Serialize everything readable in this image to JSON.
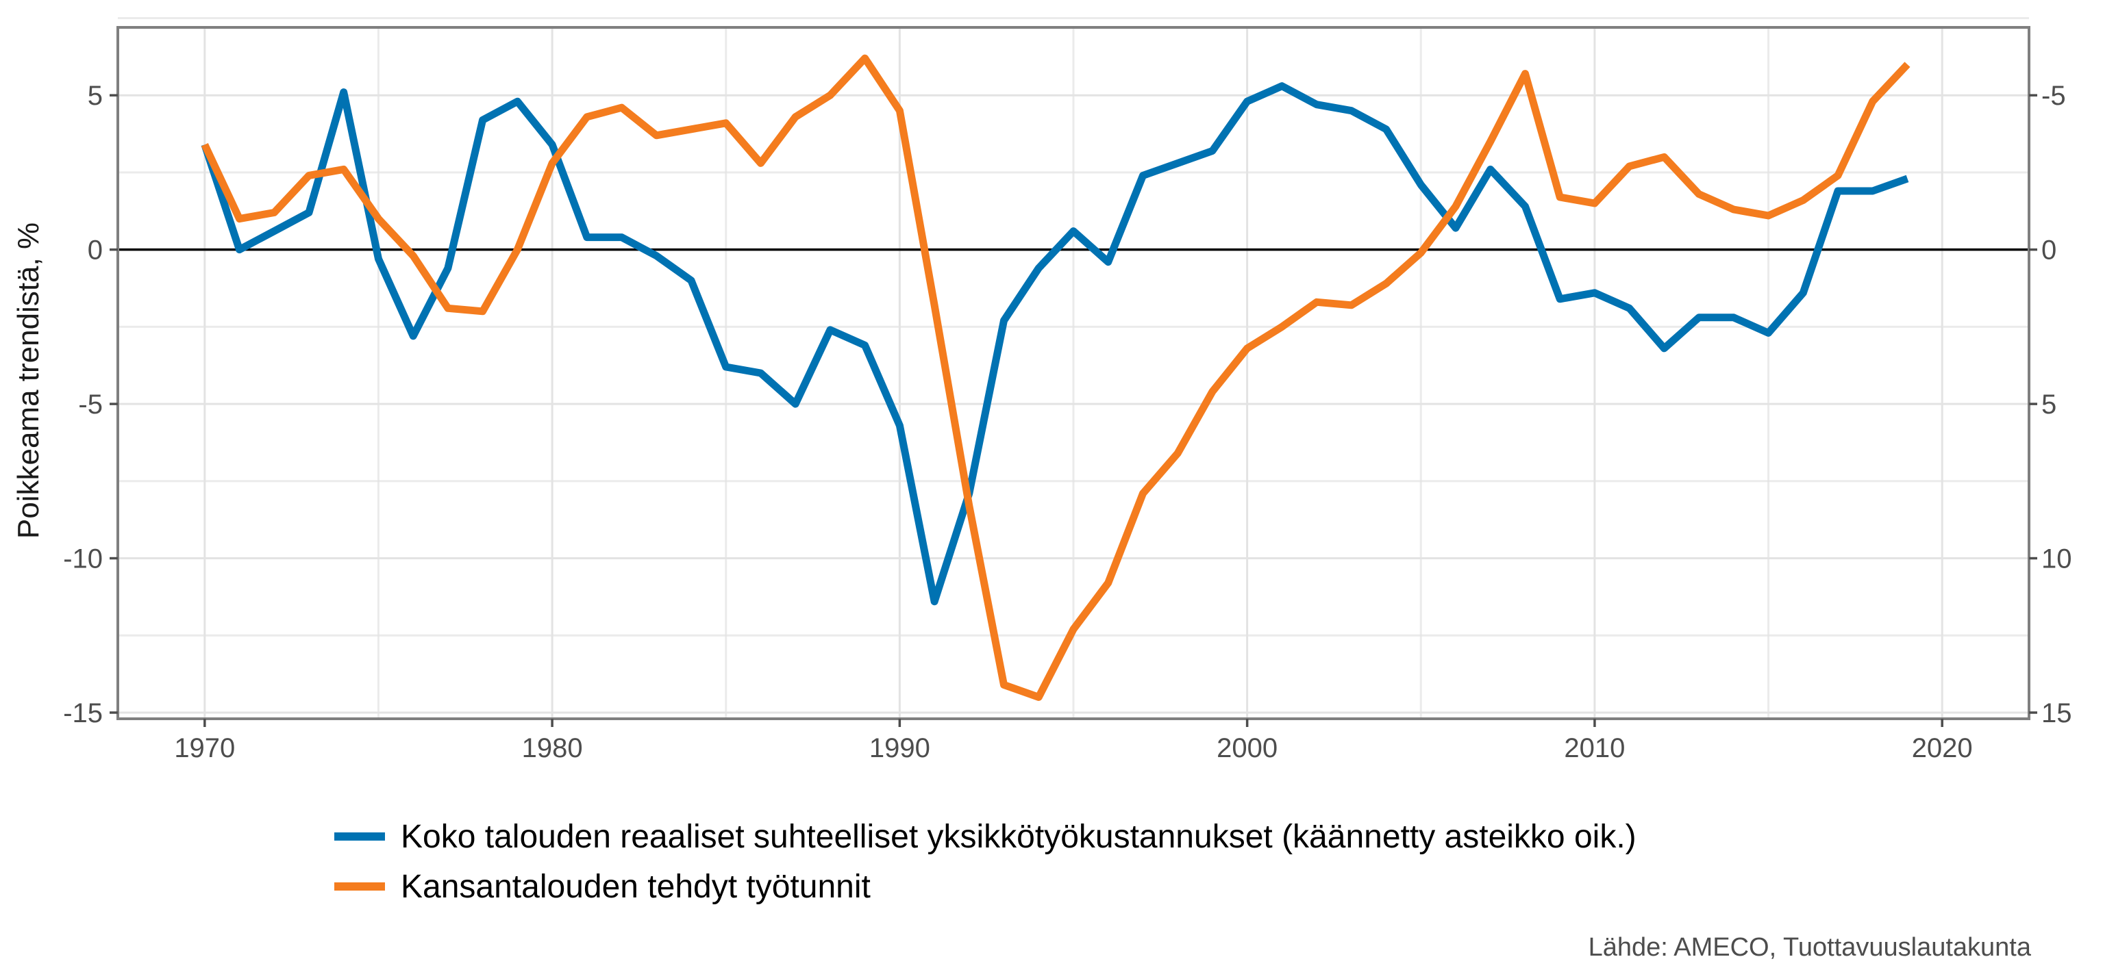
{
  "chart_data": {
    "type": "line",
    "title": "",
    "xlabel": "",
    "ylabel": "Poikkeama trendistä, %",
    "y2label": "",
    "xlim": [
      1967.5,
      2022.5
    ],
    "ylim": [
      -15.2,
      7.2
    ],
    "y2_inverted": true,
    "x_ticks": [
      1970,
      1980,
      1990,
      2000,
      2010,
      2020
    ],
    "y_ticks": [
      5,
      0,
      -5,
      -10,
      -15
    ],
    "y_tick_labels": [
      "5",
      "0",
      "-5",
      "-10",
      "-15"
    ],
    "y2_ticks": [
      -5,
      0,
      5,
      10,
      15
    ],
    "y2_tick_labels": [
      "-5",
      "0",
      "5",
      "10",
      "15"
    ],
    "grid": true,
    "zero_line": 0,
    "legend_position": "bottom",
    "series": [
      {
        "name": "Koko talouden reaaliset suhteelliset yksikkötyökustannukset (käännetty asteikko oik.)",
        "color": "#0072b2",
        "axis": "right-inverted",
        "x": [
          1970,
          1971,
          1972,
          1973,
          1974,
          1975,
          1976,
          1977,
          1978,
          1979,
          1980,
          1981,
          1982,
          1983,
          1984,
          1985,
          1986,
          1987,
          1988,
          1989,
          1990,
          1991,
          1992,
          1993,
          1994,
          1995,
          1996,
          1997,
          1998,
          1999,
          2000,
          2001,
          2002,
          2003,
          2004,
          2005,
          2006,
          2007,
          2008,
          2009,
          2010,
          2011,
          2012,
          2013,
          2014,
          2015,
          2016,
          2017,
          2018,
          2019
        ],
        "values": [
          -3.4,
          0.0,
          -0.6,
          -1.2,
          -5.1,
          0.3,
          2.8,
          0.6,
          -4.2,
          -4.8,
          -3.4,
          -0.4,
          -0.4,
          0.2,
          1.0,
          3.8,
          4.0,
          5.0,
          2.6,
          3.1,
          5.7,
          11.4,
          7.9,
          2.3,
          0.6,
          -0.6,
          0.4,
          -2.4,
          -2.8,
          -3.2,
          -4.8,
          -5.3,
          -4.7,
          -4.5,
          -3.9,
          -2.1,
          -0.7,
          -2.6,
          -1.4,
          1.6,
          1.4,
          1.9,
          3.2,
          2.2,
          2.2,
          2.7,
          1.4,
          -1.9,
          -1.9,
          -2.3
        ]
      },
      {
        "name": "Kansantalouden tehdyt työtunnit",
        "color": "#f47c1e",
        "axis": "left",
        "x": [
          1970,
          1971,
          1972,
          1973,
          1974,
          1975,
          1976,
          1977,
          1978,
          1979,
          1980,
          1981,
          1982,
          1983,
          1984,
          1985,
          1986,
          1987,
          1988,
          1989,
          1990,
          1991,
          1992,
          1993,
          1994,
          1995,
          1996,
          1997,
          1998,
          1999,
          2000,
          2001,
          2002,
          2003,
          2004,
          2005,
          2006,
          2007,
          2008,
          2009,
          2010,
          2011,
          2012,
          2013,
          2014,
          2015,
          2016,
          2017,
          2018,
          2019
        ],
        "values": [
          3.4,
          1.0,
          1.2,
          2.4,
          2.6,
          1.0,
          -0.2,
          -1.9,
          -2.0,
          0.0,
          2.8,
          4.3,
          4.6,
          3.7,
          3.9,
          4.1,
          2.8,
          4.3,
          5.0,
          6.2,
          4.5,
          -1.8,
          -8.3,
          -14.1,
          -14.5,
          -12.3,
          -10.8,
          -7.9,
          -6.6,
          -4.6,
          -3.2,
          -2.5,
          -1.7,
          -1.8,
          -1.1,
          -0.1,
          1.4,
          3.5,
          5.7,
          1.7,
          1.5,
          2.7,
          3.0,
          1.8,
          1.3,
          1.1,
          1.6,
          2.4,
          4.8,
          6.0
        ]
      }
    ],
    "caption": "Lähde: AMECO, Tuottavuuslautakunta"
  }
}
